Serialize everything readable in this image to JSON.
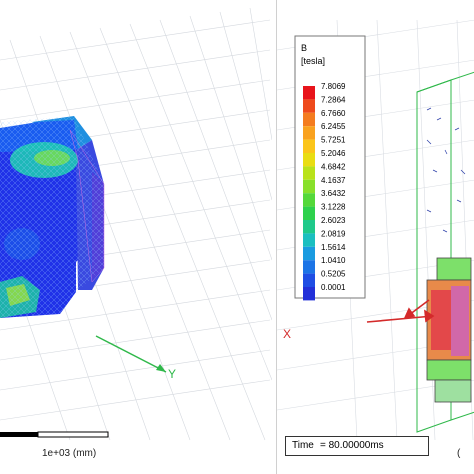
{
  "left_view": {
    "scale_label": "1e+03 (mm)",
    "axis_y_label": "Y"
  },
  "right_view": {
    "legend": {
      "title": "B",
      "unit": "[tesla]",
      "values": [
        "7.8069",
        "7.2864",
        "6.7660",
        "6.2455",
        "5.7251",
        "5.2046",
        "4.6842",
        "4.1637",
        "3.6432",
        "3.1228",
        "2.6023",
        "2.0819",
        "1.5614",
        "1.0410",
        "0.5205",
        "0.0001"
      ],
      "colors": [
        "#e8141b",
        "#ee4a1c",
        "#f47c1f",
        "#f9a21f",
        "#fbc51a",
        "#e9dd12",
        "#b9e21a",
        "#88e02b",
        "#54d83a",
        "#2ed14c",
        "#1fc98a",
        "#1bbfc0",
        "#1a9be0",
        "#1c74e6",
        "#1f4ee4",
        "#2230d8"
      ]
    },
    "time_label": "Time",
    "time_value": "= 80.00000ms",
    "axis_x_label": "X",
    "frame_label": "("
  }
}
